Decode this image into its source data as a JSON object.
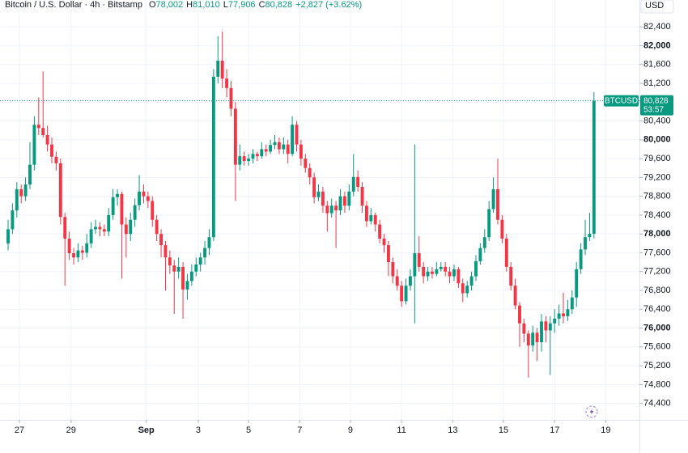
{
  "chart_data": {
    "type": "candlestick",
    "title": "Bitcoin / U.S. Dollar · 4h · Bitstamp",
    "ohlc": [
      {
        "key": "O",
        "value": "78,002"
      },
      {
        "key": "H",
        "value": "81,010"
      },
      {
        "key": "L",
        "value": "77,906"
      },
      {
        "key": "C",
        "value": "80,828"
      }
    ],
    "change": "+2,827 (+3.62%)",
    "currency": "USD",
    "symbol": "BTCUSD",
    "last_price": {
      "value": 80828,
      "label": "80,828"
    },
    "countdown": "53:57",
    "up_color": "#089981",
    "down_color": "#f23645",
    "grid": true,
    "ylim": [
      74050,
      82970
    ],
    "yticks": [
      {
        "value": 74400,
        "label": "74,400"
      },
      {
        "value": 74800,
        "label": "74,800"
      },
      {
        "value": 75200,
        "label": "75,200"
      },
      {
        "value": 75600,
        "label": "75,600"
      },
      {
        "value": 76000,
        "label": "76,000"
      },
      {
        "value": 76400,
        "label": "76,400"
      },
      {
        "value": 76800,
        "label": "76,800"
      },
      {
        "value": 77200,
        "label": "77,200"
      },
      {
        "value": 77600,
        "label": "77,600"
      },
      {
        "value": 78000,
        "label": "78,000"
      },
      {
        "value": 78400,
        "label": "78,400"
      },
      {
        "value": 78800,
        "label": "78,800"
      },
      {
        "value": 79200,
        "label": "79,200"
      },
      {
        "value": 79600,
        "label": "79,600"
      },
      {
        "value": 80000,
        "label": "80,000"
      },
      {
        "value": 80400,
        "label": "80,400"
      },
      {
        "value": 80800,
        "label": "80,800"
      },
      {
        "value": 81200,
        "label": "81,200"
      },
      {
        "value": 81600,
        "label": "81,600"
      },
      {
        "value": 82000,
        "label": "82,000"
      },
      {
        "value": 82400,
        "label": "82,400"
      }
    ],
    "xlim": [
      -1.85,
      144.4
    ],
    "xticks": [
      {
        "value": 2.6,
        "label": "27"
      },
      {
        "value": 14.4,
        "label": "29"
      },
      {
        "value": 31.6,
        "label": "Sep"
      },
      {
        "value": 43.5,
        "label": "3"
      },
      {
        "value": 55,
        "label": "5"
      },
      {
        "value": 66.7,
        "label": "7"
      },
      {
        "value": 78.3,
        "label": "9"
      },
      {
        "value": 90,
        "label": "11"
      },
      {
        "value": 101.7,
        "label": "13"
      },
      {
        "value": 113.3,
        "label": "15"
      },
      {
        "value": 125,
        "label": "17"
      },
      {
        "value": 136.7,
        "label": "19"
      }
    ],
    "candles": [
      [
        77800,
        78300,
        77650,
        78100
      ],
      [
        78100,
        78650,
        78000,
        78500
      ],
      [
        78500,
        79100,
        78350,
        78950
      ],
      [
        78950,
        79050,
        78650,
        78800
      ],
      [
        78800,
        79200,
        78700,
        79050
      ],
      [
        79050,
        79950,
        78950,
        79470
      ],
      [
        79470,
        80500,
        79350,
        80320
      ],
      [
        80320,
        80900,
        80100,
        80250
      ],
      [
        80250,
        81450,
        80050,
        80100
      ],
      [
        80100,
        80300,
        79750,
        79900
      ],
      [
        79900,
        80050,
        79500,
        79640
      ],
      [
        79640,
        79750,
        79350,
        79500
      ],
      [
        79500,
        79600,
        78200,
        78360
      ],
      [
        78360,
        78450,
        76900,
        77900
      ],
      [
        77900,
        78050,
        77450,
        77590
      ],
      [
        77590,
        77700,
        77350,
        77500
      ],
      [
        77500,
        77800,
        77400,
        77650
      ],
      [
        77650,
        77750,
        77450,
        77600
      ],
      [
        77600,
        78000,
        77500,
        77800
      ],
      [
        77800,
        78250,
        77700,
        78100
      ],
      [
        78100,
        78300,
        78000,
        78150
      ],
      [
        78150,
        78250,
        77950,
        78100
      ],
      [
        78100,
        78200,
        77950,
        78050
      ],
      [
        78050,
        78550,
        77950,
        78400
      ],
      [
        78400,
        78950,
        78300,
        78780
      ],
      [
        78780,
        78950,
        78600,
        78850
      ],
      [
        78850,
        78900,
        77050,
        78200
      ],
      [
        78200,
        78350,
        77500,
        78000
      ],
      [
        78000,
        78450,
        77850,
        78300
      ],
      [
        78300,
        78750,
        78150,
        78610
      ],
      [
        78610,
        79250,
        78500,
        78900
      ],
      [
        78900,
        79050,
        78650,
        78800
      ],
      [
        78800,
        78900,
        78550,
        78700
      ],
      [
        78700,
        78800,
        78150,
        78300
      ],
      [
        78300,
        78400,
        77850,
        78000
      ],
      [
        78000,
        78100,
        77500,
        77760
      ],
      [
        77760,
        77850,
        76800,
        77500
      ],
      [
        77500,
        77650,
        77150,
        77330
      ],
      [
        77330,
        77450,
        76300,
        77200
      ],
      [
        77200,
        77500,
        77050,
        77300
      ],
      [
        77300,
        77400,
        76200,
        76820
      ],
      [
        76820,
        77150,
        76600,
        77000
      ],
      [
        77000,
        77350,
        76900,
        77200
      ],
      [
        77200,
        77500,
        77100,
        77350
      ],
      [
        77350,
        77600,
        77200,
        77500
      ],
      [
        77500,
        77850,
        77350,
        77700
      ],
      [
        77700,
        78100,
        77550,
        77930
      ],
      [
        77930,
        81500,
        77850,
        81340
      ],
      [
        81340,
        82200,
        81200,
        81680
      ],
      [
        81680,
        82300,
        81100,
        81300
      ],
      [
        81300,
        81500,
        80900,
        81100
      ],
      [
        81100,
        81250,
        80500,
        80660
      ],
      [
        80660,
        80800,
        78700,
        79470
      ],
      [
        79470,
        79900,
        79350,
        79650
      ],
      [
        79650,
        79750,
        79450,
        79550
      ],
      [
        79550,
        79700,
        79450,
        79600
      ],
      [
        79600,
        79800,
        79500,
        79700
      ],
      [
        79700,
        79750,
        79550,
        79650
      ],
      [
        79650,
        79950,
        79600,
        79800
      ],
      [
        79800,
        79900,
        79650,
        79750
      ],
      [
        79750,
        80000,
        79700,
        79890
      ],
      [
        79890,
        80100,
        79800,
        79950
      ],
      [
        79950,
        80050,
        79700,
        79800
      ],
      [
        79800,
        80050,
        79700,
        79900
      ],
      [
        79900,
        80000,
        79500,
        79700
      ],
      [
        79700,
        80500,
        79650,
        80320
      ],
      [
        80320,
        80400,
        79750,
        79900
      ],
      [
        79900,
        80000,
        79450,
        79600
      ],
      [
        79600,
        79700,
        79300,
        79400
      ],
      [
        79400,
        79500,
        79050,
        79200
      ],
      [
        79200,
        79300,
        78650,
        78780
      ],
      [
        78780,
        79050,
        78700,
        78900
      ],
      [
        78900,
        79000,
        78450,
        78600
      ],
      [
        78600,
        78700,
        78050,
        78440
      ],
      [
        78440,
        78750,
        78350,
        78600
      ],
      [
        78600,
        78700,
        77700,
        78500
      ],
      [
        78500,
        78950,
        78400,
        78800
      ],
      [
        78800,
        78900,
        78450,
        78600
      ],
      [
        78600,
        79050,
        78500,
        78900
      ],
      [
        78900,
        79700,
        78800,
        79210
      ],
      [
        79210,
        79350,
        78900,
        79000
      ],
      [
        79000,
        79100,
        78450,
        78600
      ],
      [
        78600,
        78700,
        78150,
        78270
      ],
      [
        78270,
        78550,
        78200,
        78400
      ],
      [
        78400,
        78450,
        78050,
        78200
      ],
      [
        78200,
        78300,
        77800,
        77900
      ],
      [
        77900,
        78000,
        77600,
        77760
      ],
      [
        77760,
        77850,
        77100,
        77400
      ],
      [
        77400,
        77500,
        76950,
        77100
      ],
      [
        77100,
        77250,
        76800,
        76900
      ],
      [
        76900,
        77000,
        76450,
        76570
      ],
      [
        76570,
        77050,
        76500,
        76900
      ],
      [
        76900,
        77250,
        76800,
        77100
      ],
      [
        77100,
        79900,
        76100,
        77590
      ],
      [
        77590,
        77950,
        77200,
        77300
      ],
      [
        77300,
        77400,
        76950,
        77100
      ],
      [
        77100,
        77300,
        77000,
        77200
      ],
      [
        77200,
        77300,
        77050,
        77150
      ],
      [
        77150,
        77400,
        77100,
        77250
      ],
      [
        77250,
        77400,
        77200,
        77300
      ],
      [
        77300,
        77400,
        77100,
        77200
      ],
      [
        77200,
        77300,
        76950,
        77100
      ],
      [
        77100,
        77350,
        77000,
        77250
      ],
      [
        77250,
        77300,
        76850,
        76950
      ],
      [
        76950,
        77050,
        76550,
        76740
      ],
      [
        76740,
        77000,
        76650,
        76900
      ],
      [
        76900,
        77200,
        76800,
        77100
      ],
      [
        77100,
        77550,
        77000,
        77420
      ],
      [
        77420,
        77800,
        77350,
        77700
      ],
      [
        77700,
        78100,
        77600,
        77930
      ],
      [
        77930,
        78700,
        77850,
        78530
      ],
      [
        78530,
        79200,
        78450,
        78950
      ],
      [
        78950,
        79600,
        78200,
        78300
      ],
      [
        78300,
        78400,
        77800,
        77900
      ],
      [
        77900,
        78000,
        77200,
        77300
      ],
      [
        77300,
        77400,
        76800,
        76900
      ],
      [
        76900,
        77050,
        76400,
        76480
      ],
      [
        76480,
        76550,
        75600,
        76100
      ],
      [
        76100,
        76200,
        75700,
        75880
      ],
      [
        75880,
        75950,
        74950,
        75630
      ],
      [
        75630,
        76050,
        75500,
        75900
      ],
      [
        75900,
        76000,
        75300,
        75700
      ],
      [
        75700,
        76300,
        75500,
        76140
      ],
      [
        76140,
        76250,
        75700,
        75950
      ],
      [
        75950,
        76250,
        75000,
        76100
      ],
      [
        76100,
        76400,
        75900,
        76200
      ],
      [
        76200,
        76500,
        76050,
        76310
      ],
      [
        76310,
        76750,
        76100,
        76250
      ],
      [
        76250,
        76600,
        76150,
        76400
      ],
      [
        76400,
        76800,
        76300,
        76650
      ],
      [
        76650,
        77400,
        76450,
        77250
      ],
      [
        77250,
        77800,
        77150,
        77670
      ],
      [
        77670,
        78300,
        77550,
        77930
      ],
      [
        77930,
        78450,
        77850,
        78002
      ],
      [
        78002,
        81010,
        77906,
        80828
      ]
    ]
  }
}
